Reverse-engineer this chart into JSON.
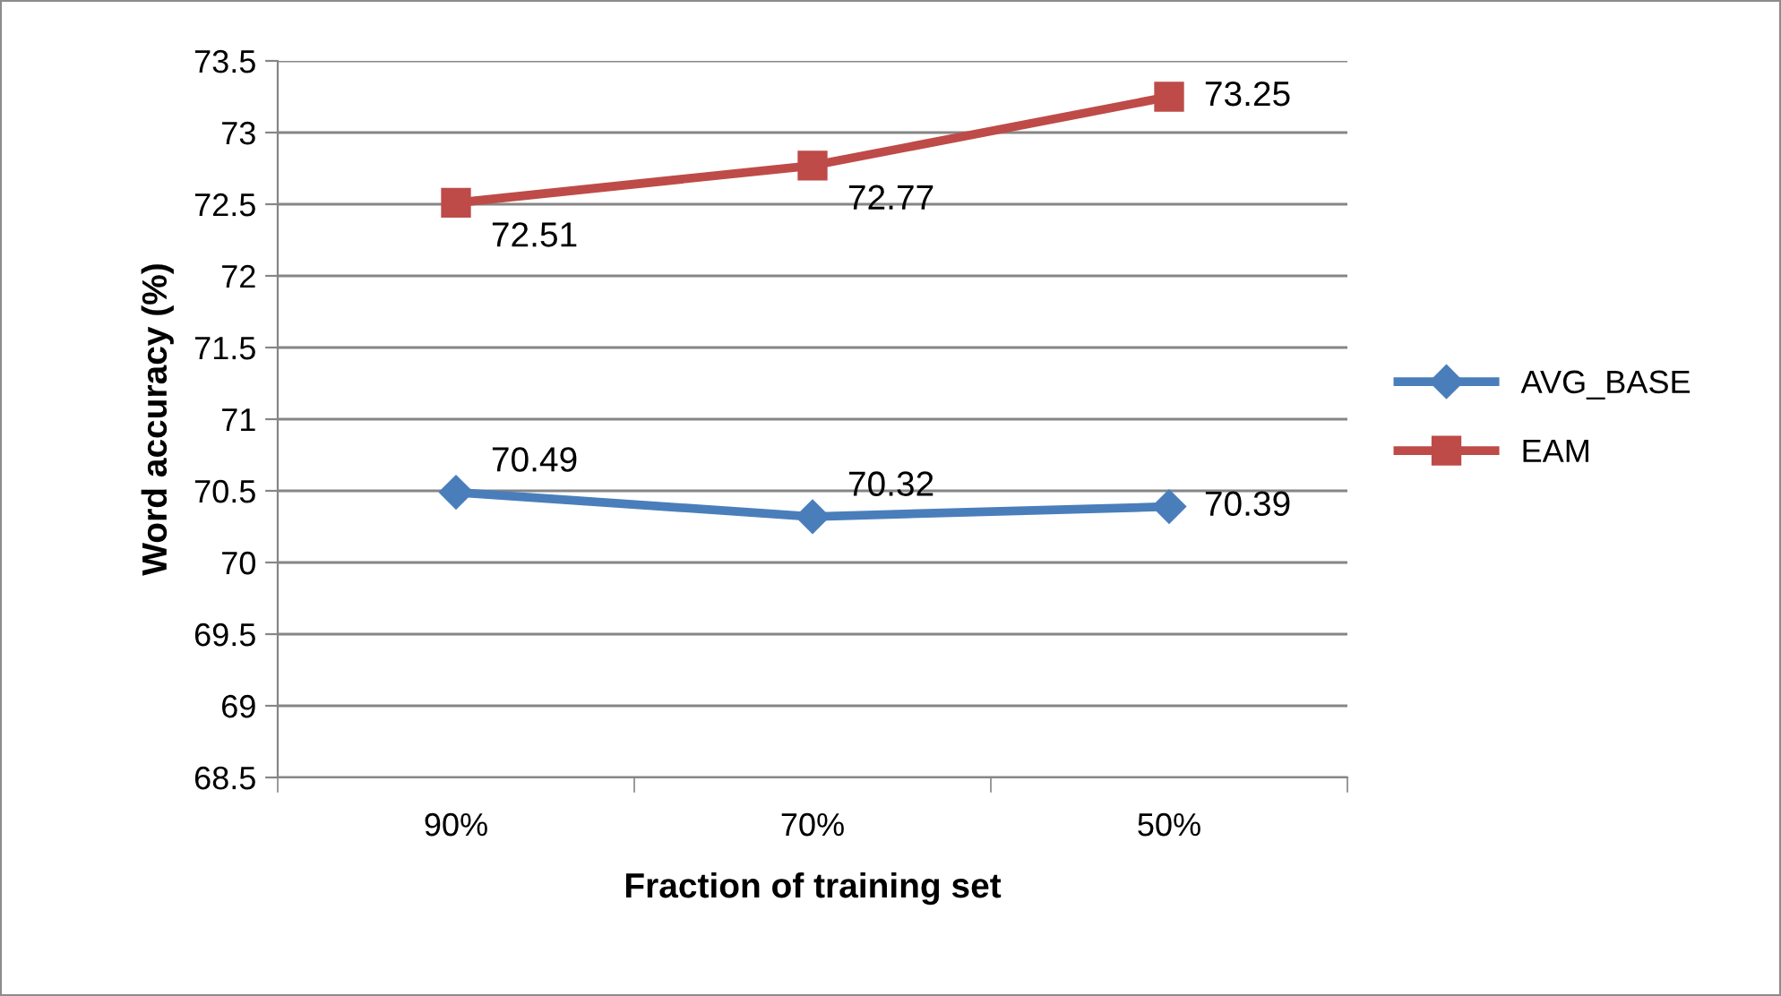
{
  "chart_data": {
    "type": "line",
    "xlabel": "Fraction of training set",
    "ylabel": "Word accuracy (%)",
    "categories": [
      "90%",
      "70%",
      "50%"
    ],
    "series": [
      {
        "name": "AVG_BASE",
        "color": "#4a7ebb",
        "marker": "diamond",
        "values": [
          70.49,
          70.32,
          70.39
        ]
      },
      {
        "name": "EAM",
        "color": "#be4b48",
        "marker": "square",
        "values": [
          72.51,
          72.77,
          73.25
        ]
      }
    ],
    "ylim": [
      68.5,
      73.5
    ],
    "yticks": [
      68.5,
      69,
      69.5,
      70,
      70.5,
      71,
      71.5,
      72,
      72.5,
      73,
      73.5
    ],
    "grid": "y",
    "legend": "right",
    "data_labels": true,
    "line_style": "solid"
  }
}
